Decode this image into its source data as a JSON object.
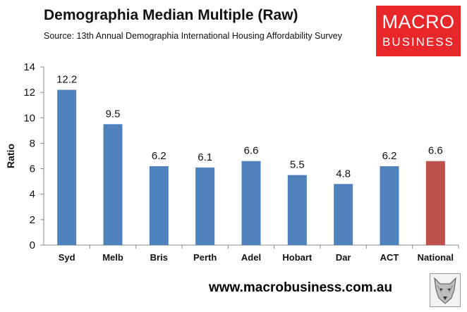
{
  "header": {
    "title": "Demographia Median Multiple (Raw)",
    "subtitle": "Source: 13th Annual Demographia International Housing Affordability Survey"
  },
  "logo": {
    "line1": "MACRO",
    "line2": "BUSINESS",
    "color": "#e8272a"
  },
  "footer": {
    "url": "www.macrobusiness.com.au"
  },
  "wolf_icon": "wolf-head-icon",
  "chart_data": {
    "type": "bar",
    "title": "Demographia Median Multiple (Raw)",
    "xlabel": "",
    "ylabel": "Ratio",
    "ylim": [
      0,
      14
    ],
    "yticks": [
      0,
      2,
      4,
      6,
      8,
      10,
      12,
      14
    ],
    "grid": false,
    "legend": "none",
    "categories": [
      "Syd",
      "Melb",
      "Bris",
      "Perth",
      "Adel",
      "Hobart",
      "Dar",
      "ACT",
      "National"
    ],
    "values": [
      12.2,
      9.5,
      6.2,
      6.1,
      6.6,
      5.5,
      4.8,
      6.2,
      6.6
    ],
    "data_labels": [
      "12.2",
      "9.5",
      "6.2",
      "6.1",
      "6.6",
      "5.5",
      "4.8",
      "6.2",
      "6.6"
    ],
    "colors": {
      "default": "#4f81bd",
      "highlight": "#c0504d",
      "highlight_category": "National"
    }
  }
}
